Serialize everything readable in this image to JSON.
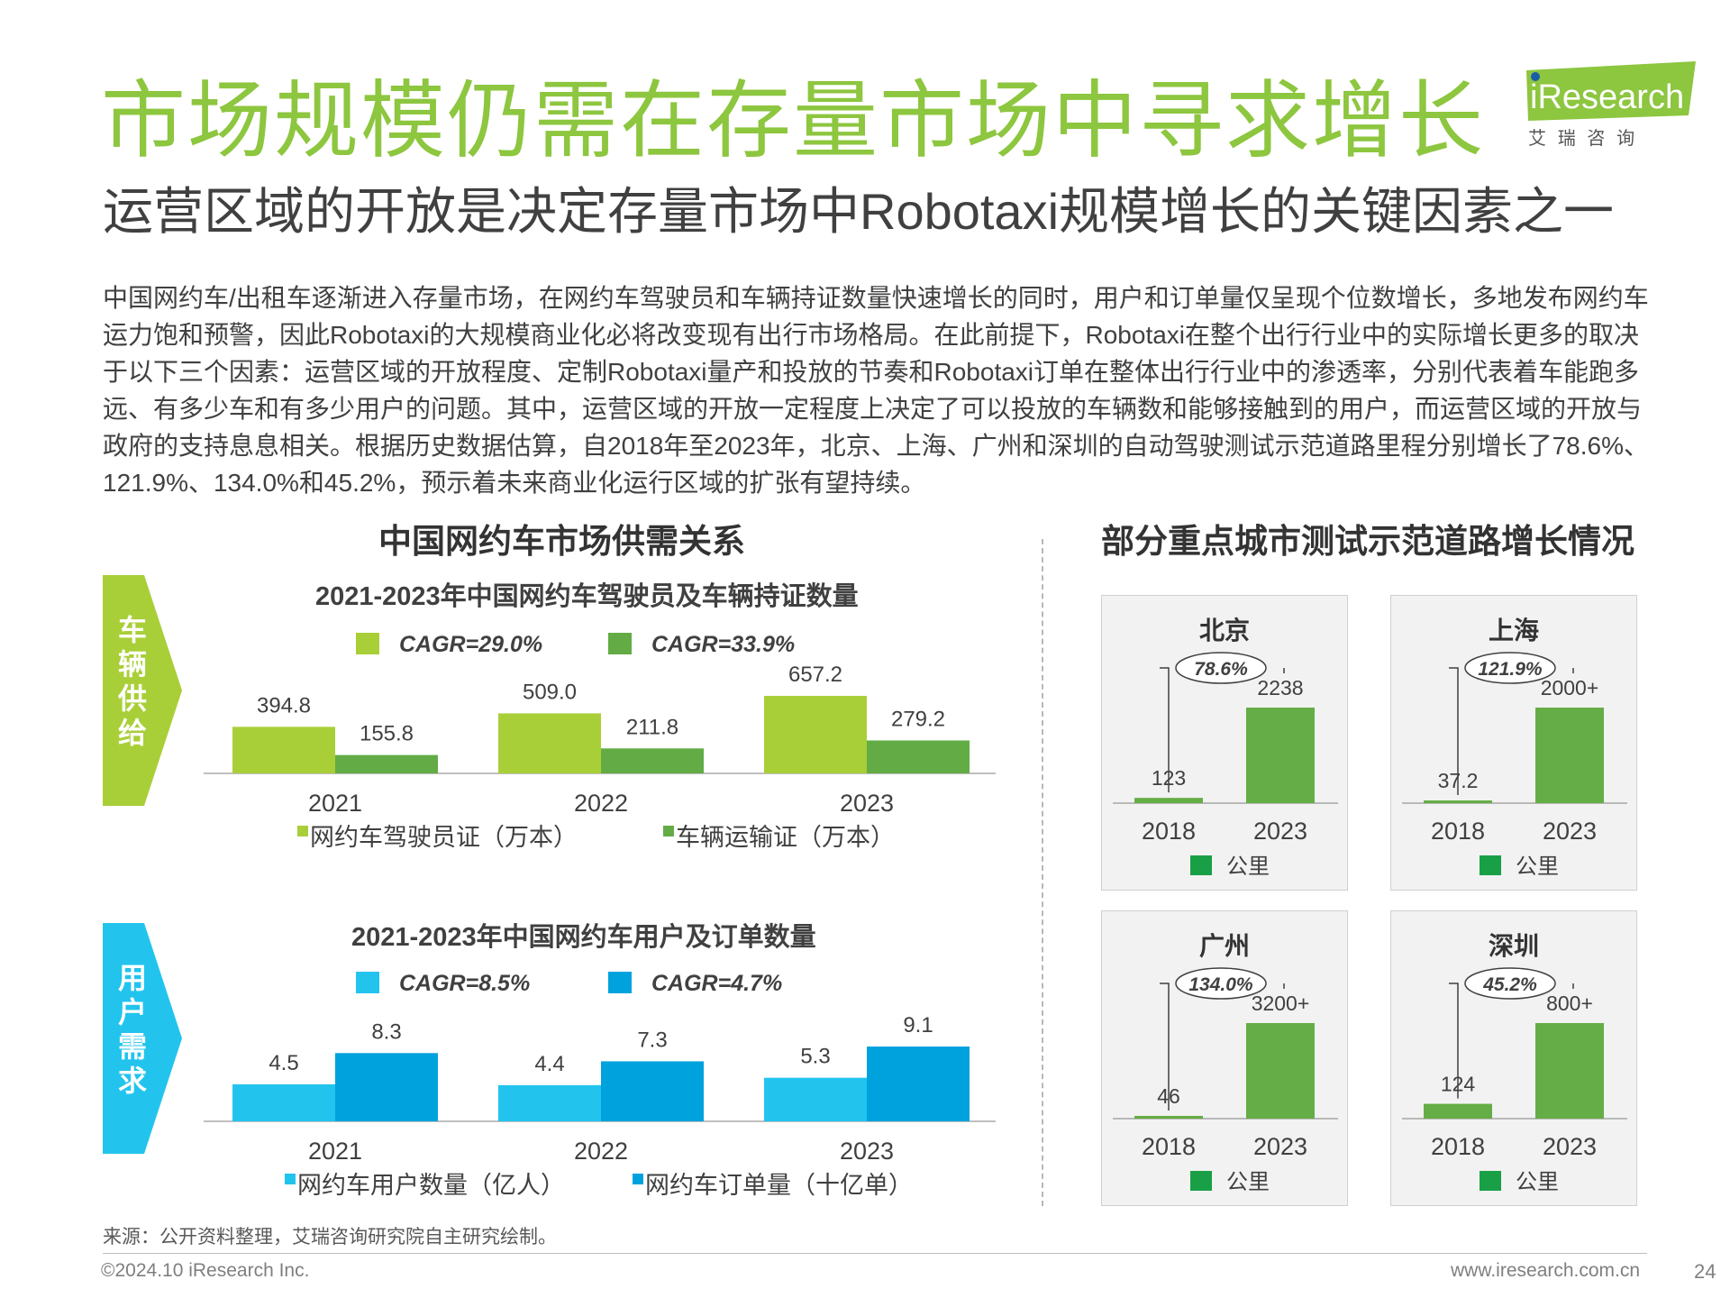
{
  "header": {
    "title": "市场规模仍需在存量市场中寻求增长",
    "subtitle": "运营区域的开放是决定存量市场中Robotaxi规模增长的关键因素之一",
    "logo": {
      "brand": "iResearch",
      "tagline": "艾  瑞  咨  询",
      "color": "#8dc63f"
    }
  },
  "body_text": "中国网约车/出租车逐渐进入存量市场，在网约车驾驶员和车辆持证数量快速增长的同时，用户和订单量仅呈现个位数增长，多地发布网约车运力饱和预警，因此Robotaxi的大规模商业化必将改变现有出行市场格局。在此前提下，Robotaxi在整个出行行业中的实际增长更多的取决于以下三个因素：运营区域的开放程度、定制Robotaxi量产和投放的节奏和Robotaxi订单在整体出行行业中的渗透率，分别代表着车能跑多远、有多少车和有多少用户的问题。其中，运营区域的开放一定程度上决定了可以投放的车辆数和能够接触到的用户，而运营区域的开放与政府的支持息息相关。根据历史数据估算，自2018年至2023年，北京、上海、广州和深圳的自动驾驶测试示范道路里程分别增长了78.6%、121.9%、134.0%和45.2%，预示着未来商业化运行区域的扩张有望持续。",
  "left_section": {
    "title": "中国网约车市场供需关系",
    "tag_supply": "车辆供给",
    "tag_demand": "用户需求"
  },
  "right_section": {
    "title": "部分重点城市测试示范道路增长情况"
  },
  "colors": {
    "green_light": "#a9cf38",
    "green_dark": "#63ac45",
    "blue_light": "#22c4ee",
    "blue_dark": "#00a2de",
    "city_bar": "#65ad46",
    "title_green": "#8dc63f"
  },
  "chart_data": [
    {
      "type": "bar",
      "title": "2021-2023年中国网约车驾驶员及车辆持证数量",
      "categories": [
        "2021",
        "2022",
        "2023"
      ],
      "series": [
        {
          "name": "网约车驾驶员证（万本）",
          "values": [
            394.8,
            509.0,
            657.2
          ],
          "cagr": "CAGR=29.0%",
          "value_labels": [
            "394.8",
            "509.0",
            "657.2"
          ]
        },
        {
          "name": "车辆运输证（万本）",
          "values": [
            155.8,
            211.8,
            279.2
          ],
          "cagr": "CAGR=33.9%",
          "value_labels": [
            "155.8",
            "211.8",
            "279.2"
          ]
        }
      ],
      "grid": false
    },
    {
      "type": "bar",
      "title": "2021-2023年中国网约车用户及订单数量",
      "categories": [
        "2021",
        "2022",
        "2023"
      ],
      "series": [
        {
          "name": "网约车用户数量（亿人）",
          "values": [
            4.5,
            4.4,
            5.3
          ],
          "cagr": "CAGR=8.5%",
          "value_labels": [
            "4.5",
            "4.4",
            "5.3"
          ]
        },
        {
          "name": "网约车订单量（十亿单）",
          "values": [
            8.3,
            7.3,
            9.1
          ],
          "cagr": "CAGR=4.7%",
          "value_labels": [
            "8.3",
            "7.3",
            "9.1"
          ]
        }
      ],
      "grid": false
    },
    {
      "type": "bar",
      "title": "北京",
      "categories": [
        "2018",
        "2023"
      ],
      "legend": "公里",
      "values": [
        123,
        2238
      ],
      "value_labels": [
        "123",
        "2238"
      ],
      "growth": "78.6%"
    },
    {
      "type": "bar",
      "title": "上海",
      "categories": [
        "2018",
        "2023"
      ],
      "legend": "公里",
      "values": [
        37.2,
        2000
      ],
      "value_labels": [
        "37.2",
        "2000+"
      ],
      "growth": "121.9%"
    },
    {
      "type": "bar",
      "title": "广州",
      "categories": [
        "2018",
        "2023"
      ],
      "legend": "公里",
      "values": [
        46,
        3200
      ],
      "value_labels": [
        "46",
        "3200+"
      ],
      "growth": "134.0%"
    },
    {
      "type": "bar",
      "title": "深圳",
      "categories": [
        "2018",
        "2023"
      ],
      "legend": "公里",
      "values": [
        124,
        800
      ],
      "value_labels": [
        "124",
        "800+"
      ],
      "growth": "45.2%"
    }
  ],
  "footer": {
    "source": "来源：公开资料整理，艾瑞咨询研究院自主研究绘制。",
    "copyright": "©2024.10 iResearch Inc.",
    "website": "www.iresearch.com.cn",
    "page": "24"
  }
}
